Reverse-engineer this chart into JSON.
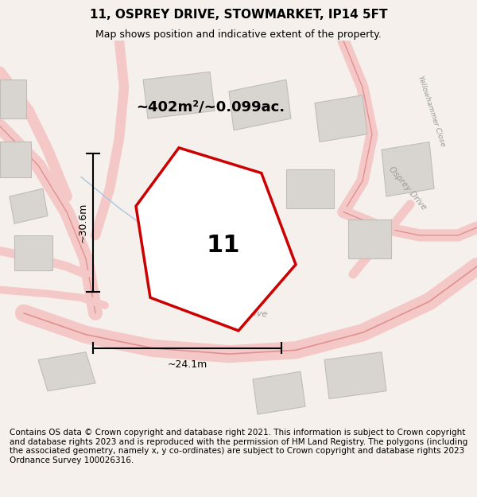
{
  "title": "11, OSPREY DRIVE, STOWMARKET, IP14 5FT",
  "subtitle": "Map shows position and indicative extent of the property.",
  "area_text": "~402m²/~0.099ac.",
  "property_number": "11",
  "dim_vertical": "~30.6m",
  "dim_horizontal": "~24.1m",
  "footer": "Contains OS data © Crown copyright and database right 2021. This information is subject to Crown copyright and database rights 2023 and is reproduced with the permission of HM Land Registry. The polygons (including the associated geometry, namely x, y co-ordinates) are subject to Crown copyright and database rights 2023 Ordnance Survey 100026316.",
  "bg_color": "#f5f0eb",
  "map_bg": "#ede8e2",
  "road_color_light": "#f5c8c8",
  "building_color": "#d8d4d0",
  "building_edge": "#c0bcb8",
  "plot_color": "#cc0000",
  "street_label_color": "#999999",
  "title_fontsize": 11,
  "subtitle_fontsize": 9,
  "footer_fontsize": 7.5
}
